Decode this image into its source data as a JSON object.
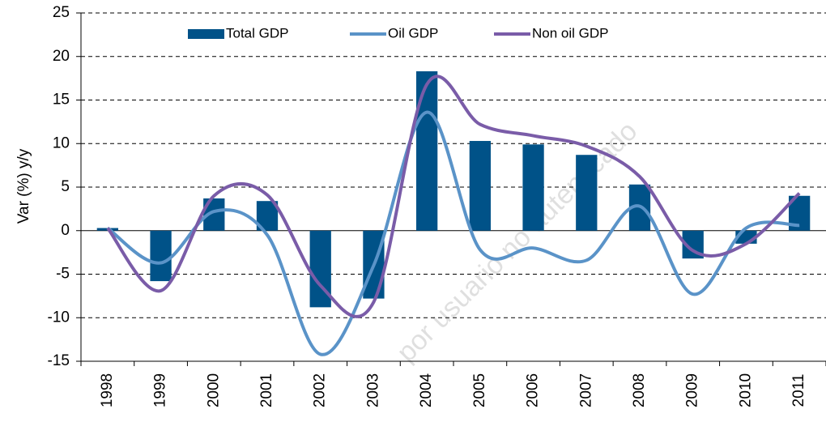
{
  "chart_data": {
    "type": "bar-line",
    "y_label": "Var (%) y/y",
    "watermark": "por usuario no autenticado",
    "categories": [
      "1998",
      "1999",
      "2000",
      "2001",
      "2002",
      "2003",
      "2004",
      "2005",
      "2006",
      "2007",
      "2008",
      "2009",
      "2010",
      "2011"
    ],
    "series": [
      {
        "name": "Total GDP",
        "type": "bar",
        "color": "#005288",
        "values": [
          0.3,
          -5.8,
          3.7,
          3.4,
          -8.8,
          -7.8,
          18.3,
          10.3,
          9.9,
          8.7,
          5.3,
          -3.2,
          -1.5,
          4.0
        ]
      },
      {
        "name": "Oil GDP",
        "type": "line",
        "color": "#5a93c8",
        "values": [
          0.3,
          -3.7,
          2.2,
          -0.5,
          -14.2,
          -4.0,
          13.6,
          -2.2,
          -2.0,
          -3.4,
          2.8,
          -7.3,
          0.3,
          0.6
        ]
      },
      {
        "name": "Non oil GDP",
        "type": "line",
        "color": "#7a5ca8",
        "values": [
          0.3,
          -6.9,
          4.0,
          4.1,
          -6.3,
          -8.2,
          16.8,
          12.2,
          10.9,
          9.7,
          6.2,
          -2.3,
          -1.5,
          4.3
        ]
      }
    ],
    "ylim": [
      -15,
      25
    ],
    "yticks": [
      -15,
      -10,
      -5,
      0,
      5,
      10,
      15,
      20,
      25
    ],
    "grid": true,
    "legend": "top"
  }
}
